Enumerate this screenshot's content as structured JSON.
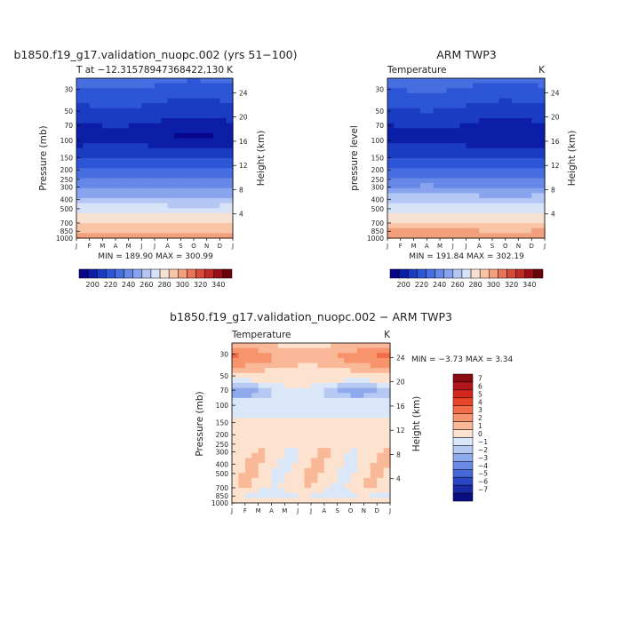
{
  "chart_data": [
    {
      "type": "heatmap",
      "title": "b1850.f19_g17.validation_nuopc.002 (yrs 51−100)",
      "subtitle_left": "T at −12.31578947368422,130",
      "subtitle_right": "K",
      "xlabel": "",
      "ylabel": "Pressure (mb)",
      "y2label": "Height (km)",
      "x_ticks": [
        "J",
        "F",
        "M",
        "A",
        "M",
        "J",
        "J",
        "A",
        "S",
        "O",
        "N",
        "D",
        "J"
      ],
      "y_ticks": [
        30,
        50,
        70,
        100,
        150,
        200,
        250,
        300,
        400,
        500,
        700,
        850,
        1000
      ],
      "y2_ticks": [
        24,
        20,
        16,
        12,
        8,
        4
      ],
      "ylim": [
        1000,
        23
      ],
      "stats": "MIN = 189.90  MAX = 300.99",
      "min": 189.9,
      "max": 300.99,
      "colorbar": {
        "labels": [
          "200",
          "220",
          "240",
          "260",
          "280",
          "300",
          "320",
          "340"
        ],
        "levels": [
          190,
          200,
          210,
          220,
          230,
          240,
          250,
          260,
          270,
          280,
          290,
          300,
          310,
          320,
          330,
          340
        ],
        "colors": [
          "#08068a",
          "#0c1ea8",
          "#1a3cc2",
          "#2c56d6",
          "#466ee0",
          "#6688e6",
          "#89a4ee",
          "#b3c6f4",
          "#d8e2f7",
          "#f7e1d2",
          "#f8c4a6",
          "#f2a07c",
          "#e77459",
          "#d64a3c",
          "#bf2a25",
          "#9a0e16",
          "#6a0408"
        ]
      }
    },
    {
      "type": "heatmap",
      "title": "ARM TWP3",
      "subtitle_left": "Temperature",
      "subtitle_right": "K",
      "xlabel": "",
      "ylabel": "pressure level",
      "y2label": "Height (km)",
      "x_ticks": [
        "J",
        "F",
        "M",
        "A",
        "M",
        "J",
        "J",
        "A",
        "S",
        "O",
        "N",
        "D",
        "J"
      ],
      "y_ticks": [
        30,
        50,
        70,
        100,
        150,
        200,
        250,
        300,
        400,
        500,
        700,
        850,
        1000
      ],
      "y2_ticks": [
        24,
        20,
        16,
        12,
        8,
        4
      ],
      "ylim": [
        1000,
        23
      ],
      "stats": "MIN = 191.84  MAX = 302.19",
      "min": 191.84,
      "max": 302.19,
      "colorbar": {
        "labels": [
          "200",
          "220",
          "240",
          "260",
          "280",
          "300",
          "320",
          "340"
        ],
        "levels": [
          190,
          200,
          210,
          220,
          230,
          240,
          250,
          260,
          270,
          280,
          290,
          300,
          310,
          320,
          330,
          340
        ],
        "colors": [
          "#08068a",
          "#0c1ea8",
          "#1a3cc2",
          "#2c56d6",
          "#466ee0",
          "#6688e6",
          "#89a4ee",
          "#b3c6f4",
          "#d8e2f7",
          "#f7e1d2",
          "#f8c4a6",
          "#f2a07c",
          "#e77459",
          "#d64a3c",
          "#bf2a25",
          "#9a0e16",
          "#6a0408"
        ]
      }
    },
    {
      "type": "heatmap",
      "title": "b1850.f19_g17.validation_nuopc.002 − ARM TWP3",
      "subtitle_left": "Temperature",
      "subtitle_right": "K",
      "xlabel": "",
      "ylabel": "Pressure (mb)",
      "y2label": "Height (km)",
      "x_ticks": [
        "J",
        "F",
        "M",
        "A",
        "M",
        "J",
        "J",
        "A",
        "S",
        "O",
        "N",
        "D",
        "J"
      ],
      "y_ticks": [
        30,
        50,
        70,
        100,
        150,
        200,
        250,
        300,
        400,
        500,
        700,
        850,
        1000
      ],
      "y2_ticks": [
        24,
        20,
        16,
        12,
        8,
        4
      ],
      "ylim": [
        1000,
        23
      ],
      "stats": "MIN =   −3.73 MAX =    3.34",
      "min": -3.73,
      "max": 3.34,
      "colorbar": {
        "labels": [
          "7",
          "6",
          "5",
          "4",
          "3",
          "2",
          "1",
          "0",
          "−1",
          "−2",
          "−3",
          "−4",
          "−5",
          "−6",
          "−7"
        ],
        "levels": [
          7,
          6,
          5,
          4,
          3,
          2,
          1,
          0,
          -1,
          -2,
          -3,
          -4,
          -5,
          -6,
          -7
        ],
        "colors": [
          "#8a0a10",
          "#b4161c",
          "#d0281e",
          "#e8452a",
          "#f26c47",
          "#f7936d",
          "#f9b898",
          "#fde3cf",
          "#dae7f8",
          "#b5c9f2",
          "#8eaaec",
          "#6a8ae4",
          "#4768d8",
          "#2a47c4",
          "#1a2aa6",
          "#0a0c82"
        ]
      }
    }
  ]
}
